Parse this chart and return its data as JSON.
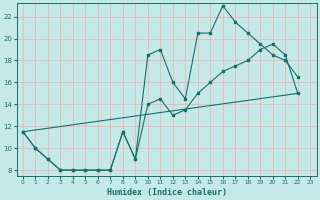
{
  "xlabel": "Humidex (Indice chaleur)",
  "bg_color": "#c5e8e8",
  "grid_color": "#e8b8b8",
  "line_color": "#1a6e6a",
  "xlim": [
    -0.5,
    23.5
  ],
  "ylim": [
    7.5,
    23.2
  ],
  "xticks": [
    0,
    1,
    2,
    3,
    4,
    5,
    6,
    7,
    8,
    9,
    10,
    11,
    12,
    13,
    14,
    15,
    16,
    17,
    18,
    19,
    20,
    21,
    22,
    23
  ],
  "yticks": [
    8,
    10,
    12,
    14,
    16,
    18,
    20,
    22
  ],
  "line1_x": [
    0,
    1,
    2,
    3,
    4,
    5,
    6,
    7,
    8,
    9,
    10,
    11,
    12,
    13,
    14,
    15,
    16,
    17,
    18,
    19,
    20,
    21,
    22
  ],
  "line1_y": [
    11.5,
    10.0,
    9.0,
    8.0,
    8.0,
    8.0,
    8.0,
    8.0,
    11.5,
    9.0,
    18.5,
    19.0,
    16.0,
    14.5,
    20.5,
    20.5,
    23.0,
    21.5,
    20.5,
    19.5,
    18.5,
    18.0,
    16.5
  ],
  "line2_x": [
    0,
    1,
    2,
    3,
    4,
    5,
    6,
    7,
    8,
    9,
    10,
    11,
    12,
    13,
    14,
    15,
    16,
    17,
    18,
    19,
    20,
    21,
    22
  ],
  "line2_y": [
    11.5,
    10.0,
    9.0,
    8.0,
    8.0,
    8.0,
    8.0,
    8.0,
    11.5,
    9.0,
    14.0,
    14.5,
    13.0,
    13.5,
    15.0,
    16.0,
    17.0,
    17.5,
    18.0,
    19.0,
    19.5,
    18.5,
    15.0
  ],
  "line3_x": [
    0,
    22
  ],
  "line3_y": [
    11.5,
    15.0
  ]
}
